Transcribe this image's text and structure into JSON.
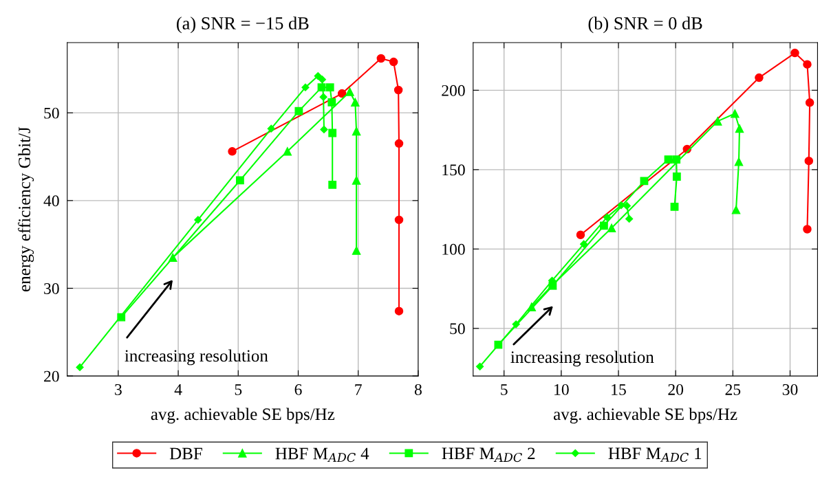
{
  "chart_data": [
    {
      "type": "line",
      "title": "(a) SNR = −15 dB",
      "xlabel": "avg. achievable SE bps/Hz",
      "ylabel": "energy efficiency Gbit/J",
      "xlim": [
        2.15,
        8
      ],
      "xticks": [
        3,
        4,
        5,
        6,
        7,
        8
      ],
      "ylim": [
        20,
        58
      ],
      "yticks": [
        20,
        30,
        40,
        50
      ],
      "grid": true,
      "legend": "bottom",
      "annotations": [
        "increasing resolution"
      ],
      "series": [
        {
          "name": "DBF",
          "color": "#ff0000",
          "marker": "circle",
          "x": [
            4.9,
            6.73,
            7.38,
            7.59,
            7.67,
            7.68,
            7.68,
            7.68
          ],
          "values": [
            45.6,
            52.2,
            56.2,
            55.8,
            52.6,
            46.5,
            37.8,
            27.4
          ]
        },
        {
          "name": "HBF M$_{ADC}$ 4",
          "color": "#00ff00",
          "marker": "triangle",
          "x": [
            3.91,
            5.82,
            6.86,
            6.95,
            6.97,
            6.97,
            6.97
          ],
          "values": [
            33.5,
            45.6,
            52.4,
            51.2,
            47.9,
            42.3,
            34.3
          ]
        },
        {
          "name": "HBF M$_{ADC}$ 2",
          "color": "#00ff00",
          "marker": "square",
          "x": [
            3.05,
            5.03,
            6.01,
            6.39,
            6.53,
            6.56,
            6.57,
            6.57
          ],
          "values": [
            26.7,
            42.3,
            50.2,
            52.9,
            52.9,
            51.2,
            47.7,
            41.8
          ]
        },
        {
          "name": "HBF M$_{ADC}$ 1",
          "color": "#00ff00",
          "marker": "diamond",
          "x": [
            2.36,
            4.33,
            5.55,
            6.12,
            6.33,
            6.4,
            6.42,
            6.43
          ],
          "values": [
            21.0,
            37.8,
            48.2,
            52.9,
            54.2,
            53.8,
            51.8,
            48.1
          ]
        }
      ]
    },
    {
      "type": "line",
      "title": "(b) SNR = 0 dB",
      "xlabel": "avg. achievable SE bps/Hz",
      "xlim": [
        2.3,
        32.4
      ],
      "xticks": [
        5,
        10,
        15,
        20,
        25,
        30
      ],
      "ylim": [
        20,
        230
      ],
      "yticks": [
        50,
        100,
        150,
        200
      ],
      "grid": true,
      "annotations": [
        "increasing resolution"
      ],
      "series": [
        {
          "color": "#ff0000",
          "marker": "circle",
          "x": [
            11.69,
            21.0,
            27.29,
            30.42,
            31.5,
            31.72,
            31.64,
            31.5
          ],
          "values": [
            108.9,
            162.9,
            207.9,
            223.5,
            216.3,
            192.2,
            155.5,
            112.5
          ]
        },
        {
          "color": "#00ff00",
          "marker": "triangle",
          "x": [
            7.41,
            9.22,
            14.4,
            23.67,
            25.18,
            25.58,
            25.52,
            25.28
          ],
          "values": [
            63.5,
            77.2,
            113.2,
            180.5,
            185.3,
            175.9,
            155.0,
            124.7
          ]
        },
        {
          "color": "#00ff00",
          "marker": "square",
          "x": [
            4.5,
            9.25,
            13.73,
            17.25,
            19.36,
            20.06,
            20.1,
            19.9
          ],
          "values": [
            39.7,
            76.9,
            114.7,
            142.8,
            156.4,
            156.4,
            145.6,
            126.6
          ]
        },
        {
          "color": "#00ff00",
          "marker": "diamond",
          "x": [
            2.89,
            6.05,
            9.2,
            11.97,
            14.0,
            15.24,
            15.74,
            15.94
          ],
          "values": [
            26.0,
            52.6,
            80.1,
            103.1,
            120.0,
            127.6,
            127.2,
            119.0
          ]
        }
      ]
    }
  ]
}
